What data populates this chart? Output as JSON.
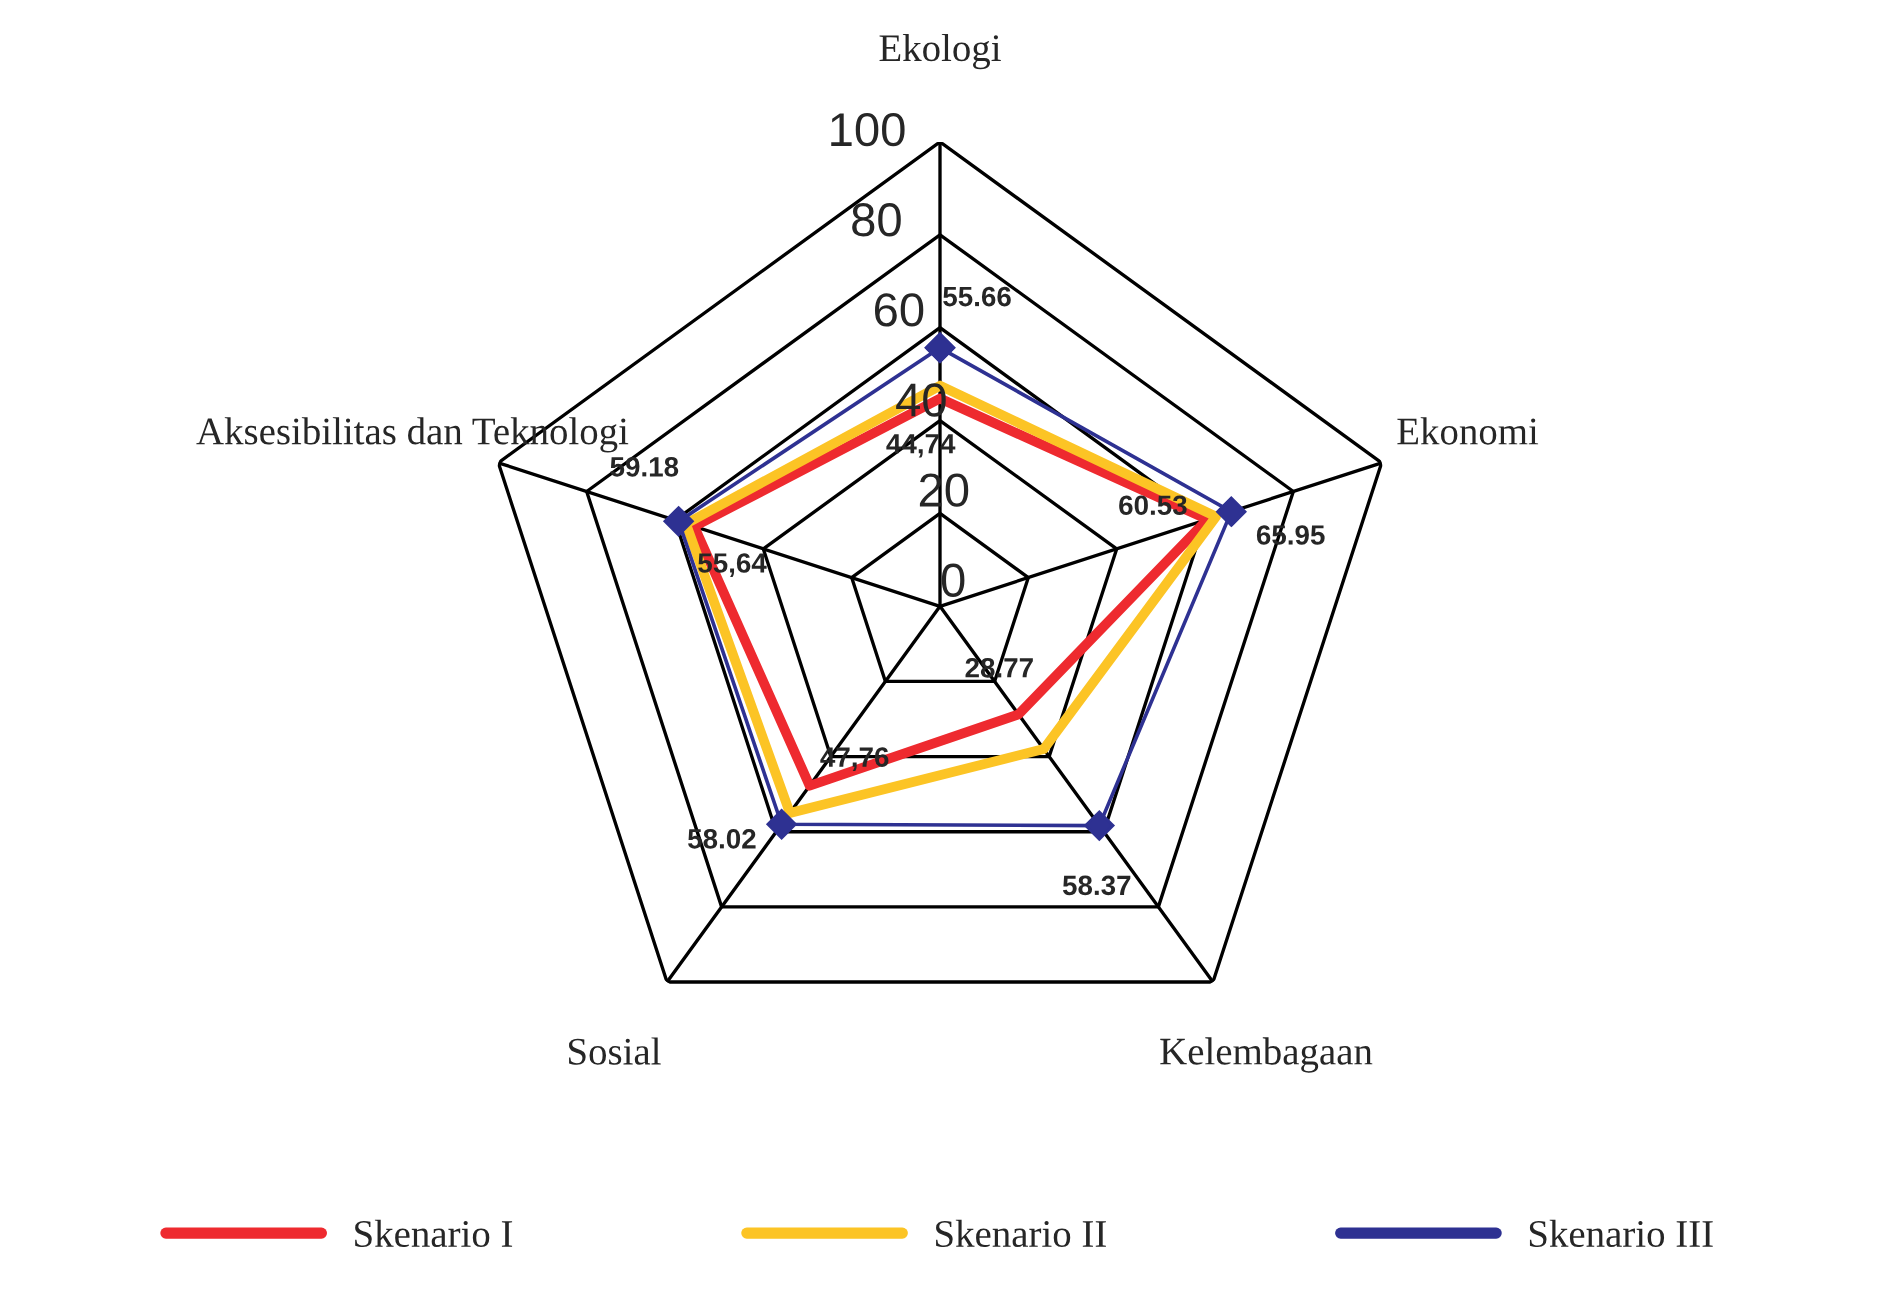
{
  "chart_data": {
    "type": "radar",
    "categories": [
      "Ekologi",
      "Ekonomi",
      "Kelembagaan",
      "Sosial",
      "Aksesibilitas dan Teknologi"
    ],
    "ylim": [
      0,
      100
    ],
    "yticks": [
      0,
      20,
      40,
      60,
      80,
      100
    ],
    "grid": true,
    "legend": "bottom",
    "series": [
      {
        "name": "Skenario I",
        "color": "#ee2a2f",
        "values": [
          44.74,
          60.53,
          28.77,
          47.76,
          55.64
        ],
        "value_labels": [
          "44,74",
          "60.53",
          "28.77",
          "47,76",
          "55,64"
        ]
      },
      {
        "name": "Skenario II",
        "color": "#fcc425",
        "values": [
          47.5,
          62.5,
          38,
          55,
          57.5
        ]
      },
      {
        "name": "Skenario III",
        "color": "#2e3192",
        "marker": "diamond",
        "values": [
          55.66,
          65.95,
          58.37,
          58.02,
          59.18
        ],
        "value_labels": [
          "55.66",
          "65.95",
          "58.37",
          "58.02",
          "59.18"
        ]
      }
    ]
  }
}
